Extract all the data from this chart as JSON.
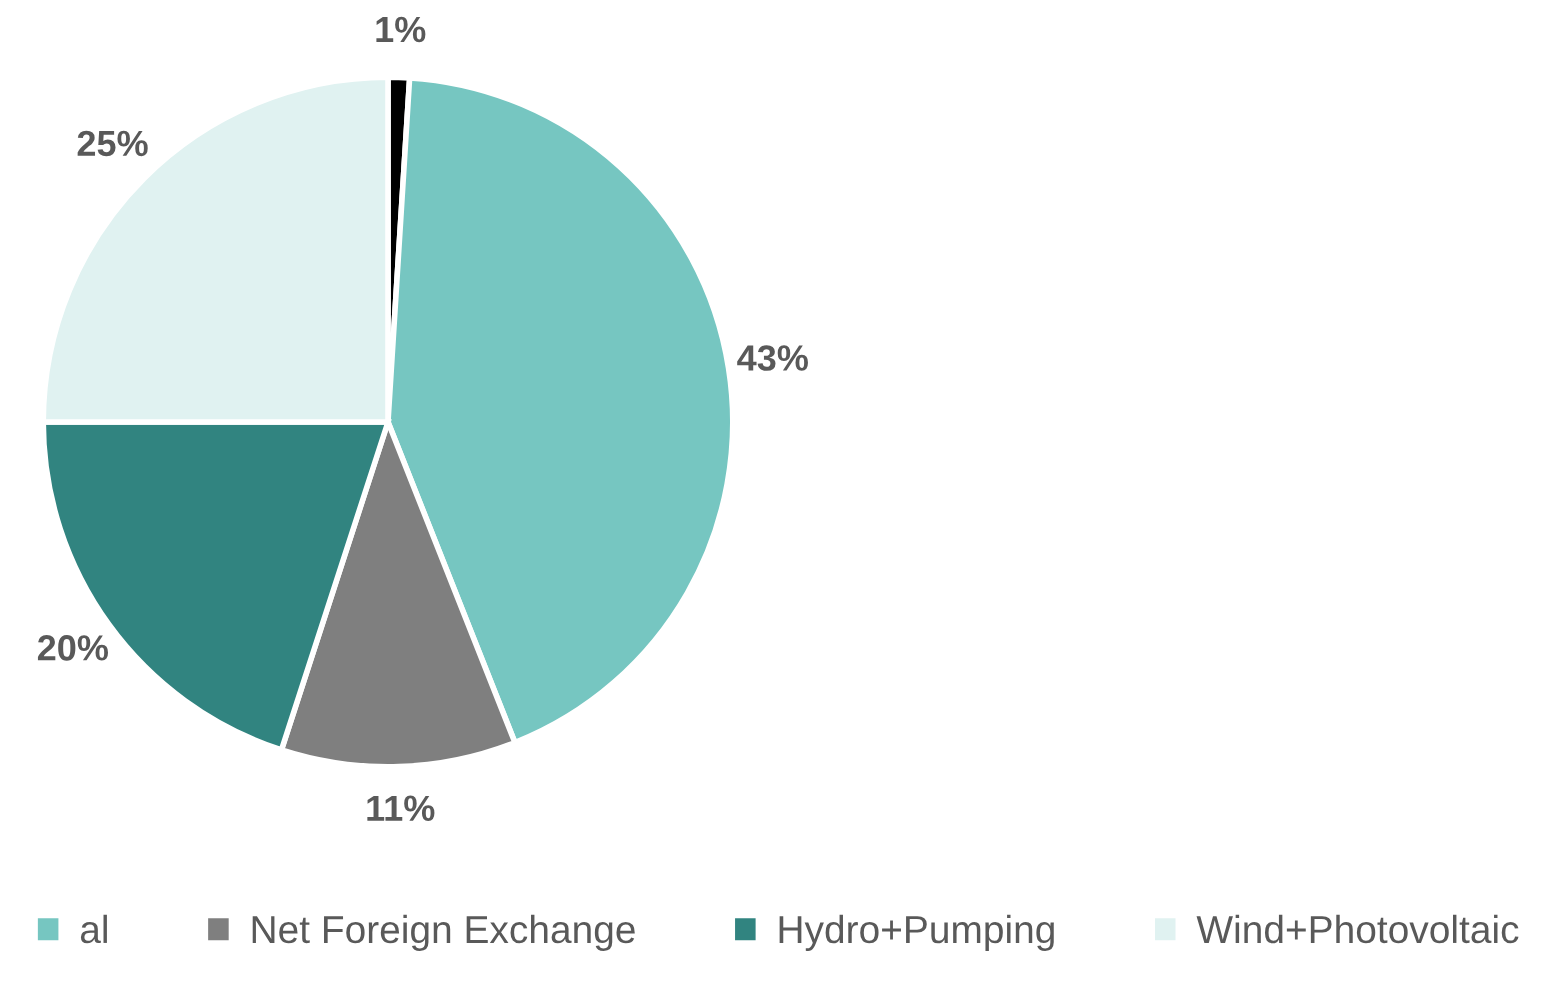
{
  "chart_data": {
    "type": "pie",
    "categories": [
      null,
      "al",
      "Net Foreign Exchange",
      "Hydro+Pumping",
      "Wind+Photovoltaic"
    ],
    "values": [
      1,
      43,
      11,
      20,
      25
    ],
    "value_labels": [
      "1%",
      "43%",
      "11%",
      "20%",
      "25%"
    ],
    "colors": [
      "#000000",
      "#76c6c1",
      "#7f7f7f",
      "#318480",
      "#e0f2f1"
    ],
    "legend": "bottom"
  }
}
